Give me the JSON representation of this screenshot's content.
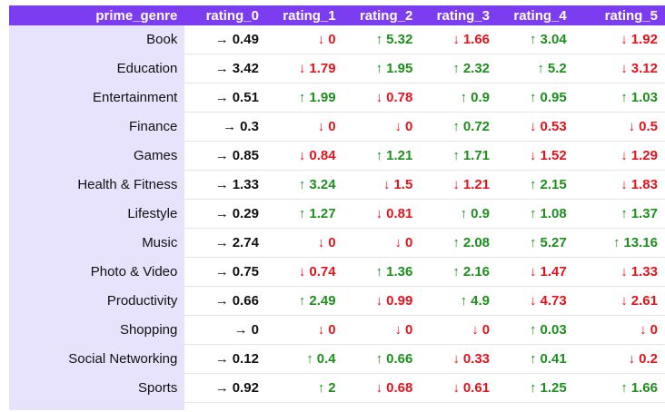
{
  "columns": [
    "prime_genre",
    "rating_0",
    "rating_1",
    "rating_2",
    "rating_3",
    "rating_4",
    "rating_5"
  ],
  "icons": {
    "up": "arrow-up-icon",
    "down": "arrow-down-icon",
    "flat": "arrow-right-icon"
  },
  "colors": {
    "header_bg": "#7c3cf0",
    "genre_bg": "#e7e3fc",
    "up": "#1d8f1d",
    "down": "#e3131b",
    "flat": "#111111"
  },
  "rows": [
    {
      "genre": "Book",
      "cells": [
        {
          "dir": "flat",
          "value": "0.49"
        },
        {
          "dir": "down",
          "value": "0"
        },
        {
          "dir": "up",
          "value": "5.32"
        },
        {
          "dir": "down",
          "value": "1.66"
        },
        {
          "dir": "up",
          "value": "3.04"
        },
        {
          "dir": "down",
          "value": "1.92"
        }
      ]
    },
    {
      "genre": "Education",
      "cells": [
        {
          "dir": "flat",
          "value": "3.42"
        },
        {
          "dir": "down",
          "value": "1.79"
        },
        {
          "dir": "up",
          "value": "1.95"
        },
        {
          "dir": "up",
          "value": "2.32"
        },
        {
          "dir": "up",
          "value": "5.2"
        },
        {
          "dir": "down",
          "value": "3.12"
        }
      ]
    },
    {
      "genre": "Entertainment",
      "cells": [
        {
          "dir": "flat",
          "value": "0.51"
        },
        {
          "dir": "up",
          "value": "1.99"
        },
        {
          "dir": "down",
          "value": "0.78"
        },
        {
          "dir": "up",
          "value": "0.9"
        },
        {
          "dir": "up",
          "value": "0.95"
        },
        {
          "dir": "up",
          "value": "1.03"
        }
      ]
    },
    {
      "genre": "Finance",
      "cells": [
        {
          "dir": "flat",
          "value": "0.3"
        },
        {
          "dir": "down",
          "value": "0"
        },
        {
          "dir": "down",
          "value": "0"
        },
        {
          "dir": "up",
          "value": "0.72"
        },
        {
          "dir": "down",
          "value": "0.53"
        },
        {
          "dir": "down",
          "value": "0.5"
        }
      ]
    },
    {
      "genre": "Games",
      "cells": [
        {
          "dir": "flat",
          "value": "0.85"
        },
        {
          "dir": "down",
          "value": "0.84"
        },
        {
          "dir": "up",
          "value": "1.21"
        },
        {
          "dir": "up",
          "value": "1.71"
        },
        {
          "dir": "down",
          "value": "1.52"
        },
        {
          "dir": "down",
          "value": "1.29"
        }
      ]
    },
    {
      "genre": "Health & Fitness",
      "cells": [
        {
          "dir": "flat",
          "value": "1.33"
        },
        {
          "dir": "up",
          "value": "3.24"
        },
        {
          "dir": "down",
          "value": "1.5"
        },
        {
          "dir": "down",
          "value": "1.21"
        },
        {
          "dir": "up",
          "value": "2.15"
        },
        {
          "dir": "down",
          "value": "1.83"
        }
      ]
    },
    {
      "genre": "Lifestyle",
      "cells": [
        {
          "dir": "flat",
          "value": "0.29"
        },
        {
          "dir": "up",
          "value": "1.27"
        },
        {
          "dir": "down",
          "value": "0.81"
        },
        {
          "dir": "up",
          "value": "0.9"
        },
        {
          "dir": "up",
          "value": "1.08"
        },
        {
          "dir": "up",
          "value": "1.37"
        }
      ]
    },
    {
      "genre": "Music",
      "cells": [
        {
          "dir": "flat",
          "value": "2.74"
        },
        {
          "dir": "down",
          "value": "0"
        },
        {
          "dir": "down",
          "value": "0"
        },
        {
          "dir": "up",
          "value": "2.08"
        },
        {
          "dir": "up",
          "value": "5.27"
        },
        {
          "dir": "up",
          "value": "13.16"
        }
      ]
    },
    {
      "genre": "Photo & Video",
      "cells": [
        {
          "dir": "flat",
          "value": "0.75"
        },
        {
          "dir": "down",
          "value": "0.74"
        },
        {
          "dir": "up",
          "value": "1.36"
        },
        {
          "dir": "up",
          "value": "2.16"
        },
        {
          "dir": "down",
          "value": "1.47"
        },
        {
          "dir": "down",
          "value": "1.33"
        }
      ]
    },
    {
      "genre": "Productivity",
      "cells": [
        {
          "dir": "flat",
          "value": "0.66"
        },
        {
          "dir": "up",
          "value": "2.49"
        },
        {
          "dir": "down",
          "value": "0.99"
        },
        {
          "dir": "up",
          "value": "4.9"
        },
        {
          "dir": "down",
          "value": "4.73"
        },
        {
          "dir": "down",
          "value": "2.61"
        }
      ]
    },
    {
      "genre": "Shopping",
      "cells": [
        {
          "dir": "flat",
          "value": "0"
        },
        {
          "dir": "down",
          "value": "0"
        },
        {
          "dir": "down",
          "value": "0"
        },
        {
          "dir": "down",
          "value": "0"
        },
        {
          "dir": "up",
          "value": "0.03"
        },
        {
          "dir": "down",
          "value": "0"
        }
      ]
    },
    {
      "genre": "Social Networking",
      "cells": [
        {
          "dir": "flat",
          "value": "0.12"
        },
        {
          "dir": "up",
          "value": "0.4"
        },
        {
          "dir": "up",
          "value": "0.66"
        },
        {
          "dir": "down",
          "value": "0.33"
        },
        {
          "dir": "up",
          "value": "0.41"
        },
        {
          "dir": "down",
          "value": "0.2"
        }
      ]
    },
    {
      "genre": "Sports",
      "cells": [
        {
          "dir": "flat",
          "value": "0.92"
        },
        {
          "dir": "up",
          "value": "2"
        },
        {
          "dir": "down",
          "value": "0.68"
        },
        {
          "dir": "down",
          "value": "0.61"
        },
        {
          "dir": "up",
          "value": "1.25"
        },
        {
          "dir": "up",
          "value": "1.66"
        }
      ]
    }
  ]
}
